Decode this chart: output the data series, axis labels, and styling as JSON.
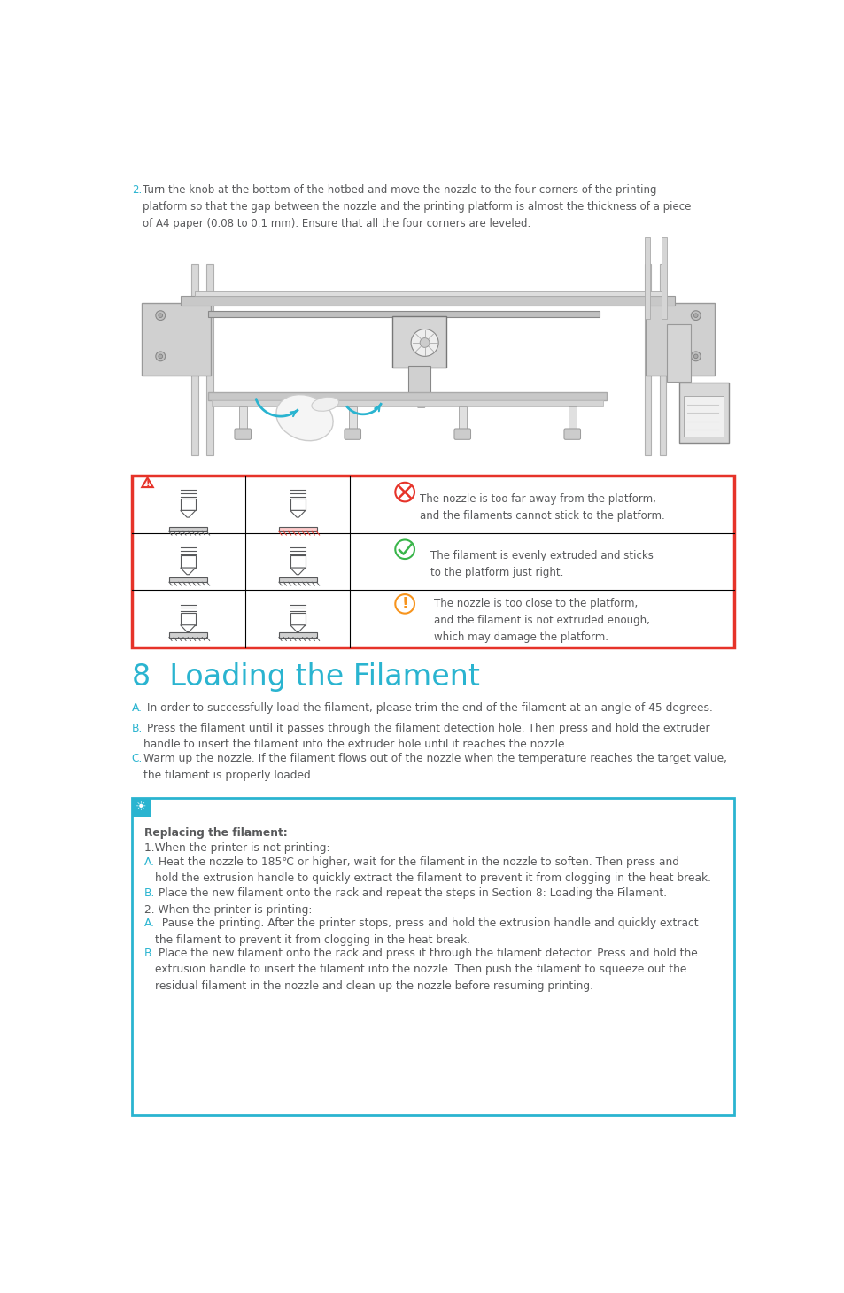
{
  "bg_color": "#ffffff",
  "cyan": "#2ab4d0",
  "dark_gray": "#58595b",
  "light_gray": "#939598",
  "red": "#e63329",
  "orange": "#f7941d",
  "green": "#39b54a",
  "section_title": "8  Loading the Filament",
  "para2_num": "2.",
  "para2_text": "Turn the knob at the bottom of the hotbed and move the nozzle to the four corners of the printing\nplatform so that the gap between the nozzle and the printing platform is almost the thickness of a piece\nof A4 paper (0.08 to 0.1 mm). Ensure that all the four corners are leveled.",
  "tip_title": "Replacing the filament:",
  "tip_1": "1.When the printer is not printing:",
  "tip_1A_label": "A.",
  "tip_1A": " Heat the nozzle to 185℃ or higher, wait for the filament in the nozzle to soften. Then press and\nhold the extrusion handle to quickly extract the filament to prevent it from clogging in the heat break.",
  "tip_1B_label": "B.",
  "tip_1B": " Place the new filament onto the rack and repeat the steps in Section 8: Loading the Filament.",
  "tip_2": "2. When the printer is printing:",
  "tip_2A_label": "A.",
  "tip_2A": "  Pause the printing. After the printer stops, press and hold the extrusion handle and quickly extract\nthe filament to prevent it from clogging in the heat break.",
  "tip_2B_label": "B.",
  "tip_2B": " Place the new filament onto the rack and press it through the filament detector. Press and hold the\nextrusion handle to insert the filament into the nozzle. Then push the filament to squeeze out the\nresidual filament in the nozzle and clean up the nozzle before resuming printing.",
  "warn_row1": "The nozzle is too far away from the platform,\nand the filaments cannot stick to the platform.",
  "warn_row2": "The filament is evenly extruded and sticks\nto the platform just right.",
  "warn_row3": "The nozzle is too close to the platform,\nand the filament is not extruded enough,\nwhich may damage the platform.",
  "stepA_label": "A.",
  "stepA_text": " In order to successfully load the filament, please trim the end of the filament at an angle of 45 degrees.",
  "stepB_label": "B.",
  "stepB_text": " Press the filament until it passes through the filament detection hole. Then press and hold the extruder\nhandle to insert the filament into the extruder hole until it reaches the nozzle.",
  "stepC_label": "C.",
  "stepC_text": "Warm up the nozzle. If the filament flows out of the nozzle when the temperature reaches the target value,\nthe filament is properly loaded."
}
